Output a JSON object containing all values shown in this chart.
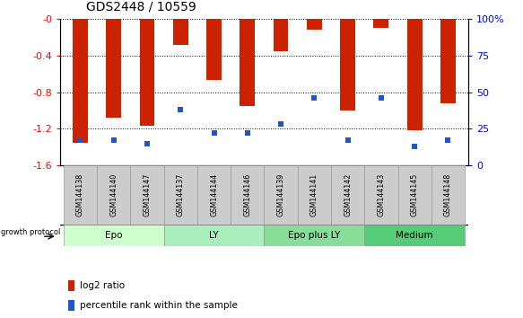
{
  "title": "GDS2448 / 10559",
  "samples": [
    "GSM144138",
    "GSM144140",
    "GSM144147",
    "GSM144137",
    "GSM144144",
    "GSM144146",
    "GSM144139",
    "GSM144141",
    "GSM144142",
    "GSM144143",
    "GSM144145",
    "GSM144148"
  ],
  "log2_ratio": [
    -1.35,
    -1.08,
    -1.17,
    -0.28,
    -0.67,
    -0.95,
    -0.35,
    -0.12,
    -1.0,
    -0.1,
    -1.22,
    -0.92
  ],
  "percentile_rank": [
    17,
    17,
    15,
    38,
    22,
    22,
    28,
    46,
    17,
    46,
    13,
    17
  ],
  "bar_color": "#cc2200",
  "dot_color": "#2255cc",
  "groups": [
    {
      "label": "Epo",
      "start": 0,
      "end": 3,
      "color": "#ccffcc"
    },
    {
      "label": "LY",
      "start": 3,
      "end": 6,
      "color": "#aaeebb"
    },
    {
      "label": "Epo plus LY",
      "start": 6,
      "end": 9,
      "color": "#88dd99"
    },
    {
      "label": "Medium",
      "start": 9,
      "end": 12,
      "color": "#55cc77"
    }
  ],
  "ylim_left": [
    -1.6,
    0.0
  ],
  "ylim_right": [
    0,
    100
  ],
  "ylabel_left_ticks": [
    0.0,
    -0.4,
    -0.8,
    -1.2,
    -1.6
  ],
  "ylabel_right_ticks": [
    0,
    25,
    50,
    75,
    100
  ],
  "bar_width": 0.45,
  "dot_size": 4.5,
  "legend_log2_label": "log2 ratio",
  "legend_pct_label": "percentile rank within the sample",
  "group_label": "growth protocol",
  "label_box_color": "#cccccc",
  "label_box_edge": "#999999"
}
